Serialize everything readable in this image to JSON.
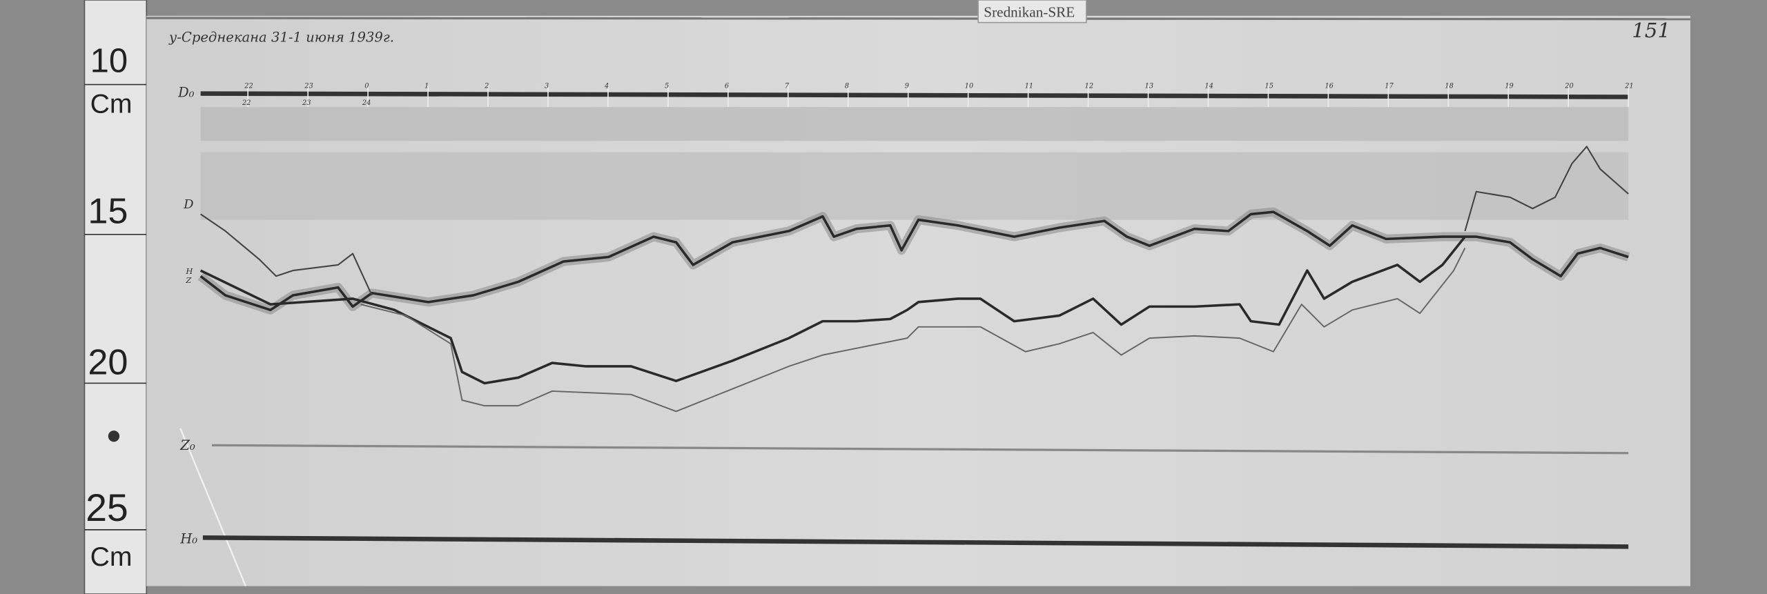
{
  "station_tag": "Srednikan-SRE",
  "title": "у-Среднекана 31-1 июня 1939г.",
  "sheet_number": "151",
  "ruler": {
    "marks": [
      {
        "value": "10",
        "unit": "Cm"
      },
      {
        "value": "15"
      },
      {
        "value": "20"
      },
      {
        "value": "25",
        "unit": "Cm"
      }
    ]
  },
  "trace_labels": {
    "d0": "D₀",
    "d": "D",
    "h": "H",
    "z": "Z",
    "z0": "Z₀",
    "h0": "H₀"
  },
  "hour_marks": [
    "22",
    "23",
    "0",
    "1",
    "2",
    "3",
    "4",
    "5",
    "6",
    "7",
    "8",
    "9",
    "10",
    "11",
    "12",
    "13",
    "14",
    "15",
    "16",
    "17",
    "18",
    "19",
    "20",
    "21"
  ],
  "hour_marks_lower": {
    "22": "22",
    "23": "23",
    "0": "24"
  },
  "colors": {
    "background": "#8a8a8a",
    "paper": "#d9d9d9",
    "trace": "#2a2a2a"
  }
}
